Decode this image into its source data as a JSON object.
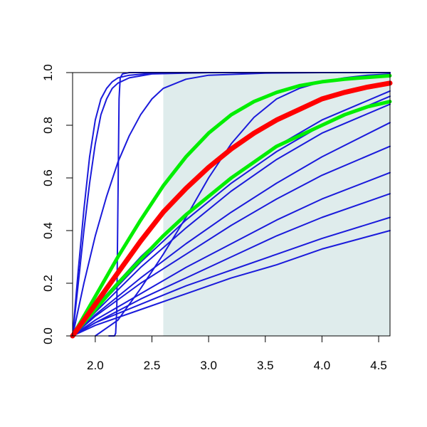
{
  "chart_data": {
    "type": "line",
    "title": "",
    "xlabel": "",
    "ylabel": "",
    "xlim": [
      1.8,
      4.6
    ],
    "ylim": [
      0,
      1
    ],
    "xticks": [
      2.0,
      2.5,
      3.0,
      3.5,
      4.0,
      4.5
    ],
    "xtick_labels": [
      "2.0",
      "2.5",
      "3.0",
      "3.5",
      "4.0",
      "4.5"
    ],
    "yticks": [
      0.0,
      0.2,
      0.4,
      0.6,
      0.8,
      1.0
    ],
    "ytick_labels": [
      "0.0",
      "0.2",
      "0.4",
      "0.6",
      "0.8",
      "1.0"
    ],
    "grid": false,
    "legend": "none",
    "colors": {
      "shade": "#dfecec",
      "blue": "#1a1adb",
      "red": "#ff0000",
      "green": "#00ee00"
    },
    "shaded_region": {
      "x_start": 2.6,
      "x_end": 4.6,
      "y_start": 0,
      "y_end": 1
    },
    "series": [
      {
        "color": "#1a1adb",
        "width": 2,
        "x": [
          1.8,
          1.85,
          1.9,
          1.95,
          2.0,
          2.05,
          2.1,
          2.15,
          2.2,
          2.3,
          2.5,
          3.0,
          4.6
        ],
        "y": [
          0.0,
          0.25,
          0.48,
          0.68,
          0.82,
          0.9,
          0.94,
          0.965,
          0.98,
          0.99,
          0.997,
          1.0,
          1.0
        ]
      },
      {
        "color": "#1a1adb",
        "width": 2,
        "x": [
          1.8,
          1.85,
          1.9,
          1.95,
          2.0,
          2.05,
          2.1,
          2.15,
          2.2,
          2.3,
          2.5,
          3.0,
          4.6
        ],
        "y": [
          0.0,
          0.2,
          0.4,
          0.58,
          0.73,
          0.84,
          0.9,
          0.94,
          0.96,
          0.98,
          0.995,
          1.0,
          1.0
        ]
      },
      {
        "color": "#1a1adb",
        "width": 2,
        "x": [
          2.12,
          2.17,
          2.18,
          2.19,
          2.2,
          2.21,
          2.22,
          2.24,
          2.3,
          3.0,
          4.6
        ],
        "y": [
          0.0,
          0.0,
          0.01,
          0.1,
          0.5,
          0.9,
          0.98,
          0.995,
          1.0,
          1.0,
          1.0
        ]
      },
      {
        "color": "#1a1adb",
        "width": 2,
        "x": [
          1.8,
          1.9,
          2.0,
          2.1,
          2.2,
          2.3,
          2.4,
          2.5,
          2.6,
          2.8,
          3.0,
          3.5,
          4.0,
          4.6
        ],
        "y": [
          0.0,
          0.2,
          0.38,
          0.53,
          0.66,
          0.76,
          0.84,
          0.9,
          0.94,
          0.975,
          0.99,
          0.998,
          1.0,
          1.0
        ]
      },
      {
        "color": "#1a1adb",
        "width": 2,
        "x": [
          2.0,
          2.2,
          2.4,
          2.6,
          2.8,
          3.0,
          3.2,
          3.4,
          3.6,
          3.8,
          4.0,
          4.2,
          4.4,
          4.6
        ],
        "y": [
          0.0,
          0.06,
          0.18,
          0.31,
          0.45,
          0.6,
          0.73,
          0.83,
          0.9,
          0.94,
          0.965,
          0.98,
          0.99,
          0.995
        ]
      },
      {
        "color": "#1a1adb",
        "width": 2,
        "x": [
          1.8,
          2.0,
          2.4,
          2.8,
          3.2,
          3.6,
          4.0,
          4.6
        ],
        "y": [
          0.0,
          0.11,
          0.3,
          0.46,
          0.6,
          0.72,
          0.82,
          0.93
        ]
      },
      {
        "color": "#1a1adb",
        "width": 2,
        "x": [
          1.8,
          2.0,
          2.4,
          2.8,
          3.2,
          3.6,
          4.0,
          4.6
        ],
        "y": [
          0.0,
          0.1,
          0.28,
          0.44,
          0.58,
          0.7,
          0.8,
          0.91
        ]
      },
      {
        "color": "#1a1adb",
        "width": 2,
        "x": [
          1.8,
          2.0,
          2.4,
          2.8,
          3.2,
          3.6,
          4.0,
          4.6
        ],
        "y": [
          0.0,
          0.09,
          0.26,
          0.41,
          0.55,
          0.67,
          0.77,
          0.88
        ]
      },
      {
        "color": "#1a1adb",
        "width": 2,
        "x": [
          1.8,
          2.0,
          2.4,
          2.8,
          3.2,
          3.6,
          4.0,
          4.6
        ],
        "y": [
          0.0,
          0.08,
          0.22,
          0.35,
          0.47,
          0.58,
          0.68,
          0.81
        ]
      },
      {
        "color": "#1a1adb",
        "width": 2,
        "x": [
          1.8,
          2.0,
          2.4,
          2.8,
          3.2,
          3.6,
          4.0,
          4.6
        ],
        "y": [
          0.0,
          0.075,
          0.2,
          0.31,
          0.42,
          0.52,
          0.61,
          0.72
        ]
      },
      {
        "color": "#1a1adb",
        "width": 2,
        "x": [
          1.8,
          2.0,
          2.4,
          2.8,
          3.2,
          3.6,
          4.0,
          4.6
        ],
        "y": [
          0.0,
          0.06,
          0.16,
          0.26,
          0.35,
          0.44,
          0.52,
          0.62
        ]
      },
      {
        "color": "#1a1adb",
        "width": 2,
        "x": [
          1.8,
          2.0,
          2.4,
          2.8,
          3.2,
          3.6,
          4.0,
          4.6
        ],
        "y": [
          0.0,
          0.05,
          0.14,
          0.22,
          0.3,
          0.38,
          0.45,
          0.54
        ]
      },
      {
        "color": "#1a1adb",
        "width": 2,
        "x": [
          1.8,
          2.0,
          2.4,
          2.8,
          3.2,
          3.6,
          4.0,
          4.6
        ],
        "y": [
          0.0,
          0.05,
          0.12,
          0.19,
          0.25,
          0.31,
          0.37,
          0.45
        ]
      },
      {
        "color": "#1a1adb",
        "width": 2,
        "x": [
          1.8,
          2.0,
          2.4,
          2.8,
          3.2,
          3.6,
          4.0,
          4.6
        ],
        "y": [
          0.0,
          0.04,
          0.1,
          0.16,
          0.22,
          0.27,
          0.33,
          0.4
        ]
      },
      {
        "color": "#00ee00",
        "width": 5,
        "x": [
          1.8,
          2.0,
          2.2,
          2.4,
          2.6,
          2.8,
          3.0,
          3.2,
          3.4,
          3.6,
          3.8,
          4.0,
          4.2,
          4.4,
          4.6
        ],
        "y": [
          0.0,
          0.15,
          0.3,
          0.44,
          0.57,
          0.68,
          0.77,
          0.84,
          0.89,
          0.925,
          0.95,
          0.965,
          0.975,
          0.982,
          0.988
        ]
      },
      {
        "color": "#00ee00",
        "width": 5,
        "x": [
          1.8,
          2.0,
          2.2,
          2.4,
          2.6,
          2.8,
          3.0,
          3.2,
          3.4,
          3.6,
          3.8,
          4.0,
          4.2,
          4.4,
          4.6
        ],
        "y": [
          0.0,
          0.1,
          0.2,
          0.29,
          0.38,
          0.46,
          0.53,
          0.6,
          0.66,
          0.72,
          0.76,
          0.8,
          0.84,
          0.87,
          0.89
        ]
      },
      {
        "color": "#ff0000",
        "width": 7,
        "x": [
          1.8,
          2.0,
          2.2,
          2.4,
          2.6,
          2.8,
          3.0,
          3.2,
          3.4,
          3.6,
          3.8,
          4.0,
          4.2,
          4.4,
          4.6
        ],
        "y": [
          0.0,
          0.12,
          0.24,
          0.36,
          0.47,
          0.56,
          0.64,
          0.71,
          0.77,
          0.82,
          0.86,
          0.9,
          0.925,
          0.945,
          0.96
        ]
      }
    ]
  }
}
